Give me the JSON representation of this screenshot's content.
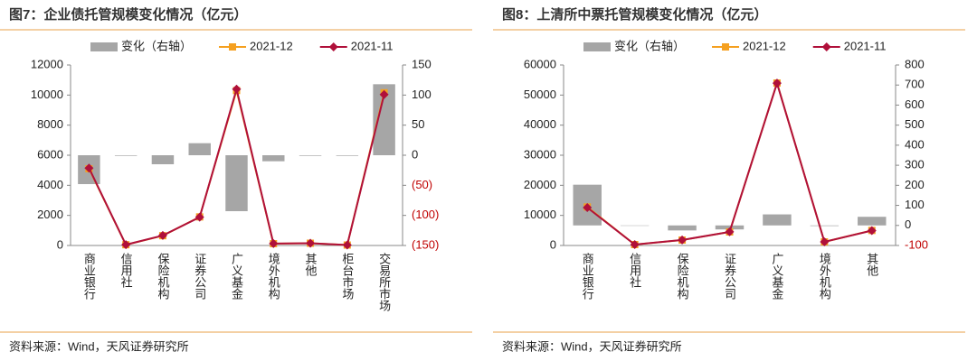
{
  "chart_data": [
    {
      "type": "bar_line",
      "title": "图7：企业债托管规模变化情况（亿元）",
      "categories": [
        "商业银行",
        "信用社",
        "保险机构",
        "证券公司",
        "广义基金",
        "境外机构",
        "其他",
        "柜台市场",
        "交易所市场"
      ],
      "series": [
        {
          "name": "变化（右轴）",
          "type": "bar",
          "axis": "y2",
          "color": "#a6a6a6",
          "values": [
            -48,
            -1,
            -15,
            20,
            -93,
            -10,
            -1,
            -1,
            118
          ]
        },
        {
          "name": "2021-12",
          "type": "line",
          "color": "#f5a020",
          "marker": "square",
          "values": [
            5100,
            50,
            650,
            1900,
            10300,
            120,
            150,
            30,
            10150
          ]
        },
        {
          "name": "2021-11",
          "type": "line",
          "color": "#b0103a",
          "marker": "diamond",
          "values": [
            5148,
            51,
            665,
            1880,
            10393,
            130,
            151,
            31,
            10032
          ]
        }
      ],
      "ylim": [
        0,
        12000
      ],
      "yticks": [
        0,
        2000,
        4000,
        6000,
        8000,
        10000,
        12000
      ],
      "y2lim": [
        -150,
        150
      ],
      "y2ticks": [
        {
          "value": -150,
          "label": "(150)"
        },
        {
          "value": -100,
          "label": "(100)"
        },
        {
          "value": -50,
          "label": "(50)"
        },
        0,
        50,
        100,
        150
      ],
      "source": "资料来源：Wind，天风证券研究所"
    },
    {
      "type": "bar_line",
      "title": "图8：上清所中票托管规模变化情况（亿元）",
      "categories": [
        "商业银行",
        "信用社",
        "保险机构",
        "证券公司",
        "广义基金",
        "境外机构",
        "其他"
      ],
      "series": [
        {
          "name": "变化（右轴）",
          "type": "bar",
          "axis": "y2",
          "color": "#a6a6a6",
          "values": [
            203,
            -2,
            -25,
            -20,
            55,
            -3,
            43
          ]
        },
        {
          "name": "2021-12",
          "type": "line",
          "color": "#f5a020",
          "marker": "square",
          "values": [
            12800,
            300,
            1800,
            4500,
            54000,
            1200,
            5000
          ]
        },
        {
          "name": "2021-11",
          "type": "line",
          "color": "#b0103a",
          "marker": "diamond",
          "values": [
            12597,
            302,
            1825,
            4520,
            53945,
            1203,
            4957
          ]
        }
      ],
      "ylim": [
        0,
        60000
      ],
      "yticks": [
        0,
        10000,
        20000,
        30000,
        40000,
        50000,
        60000
      ],
      "y2lim": [
        -100,
        800
      ],
      "y2ticks": [
        -100,
        0,
        100,
        200,
        300,
        400,
        500,
        600,
        700,
        800
      ],
      "source": "资料来源：Wind，天风证券研究所"
    }
  ]
}
